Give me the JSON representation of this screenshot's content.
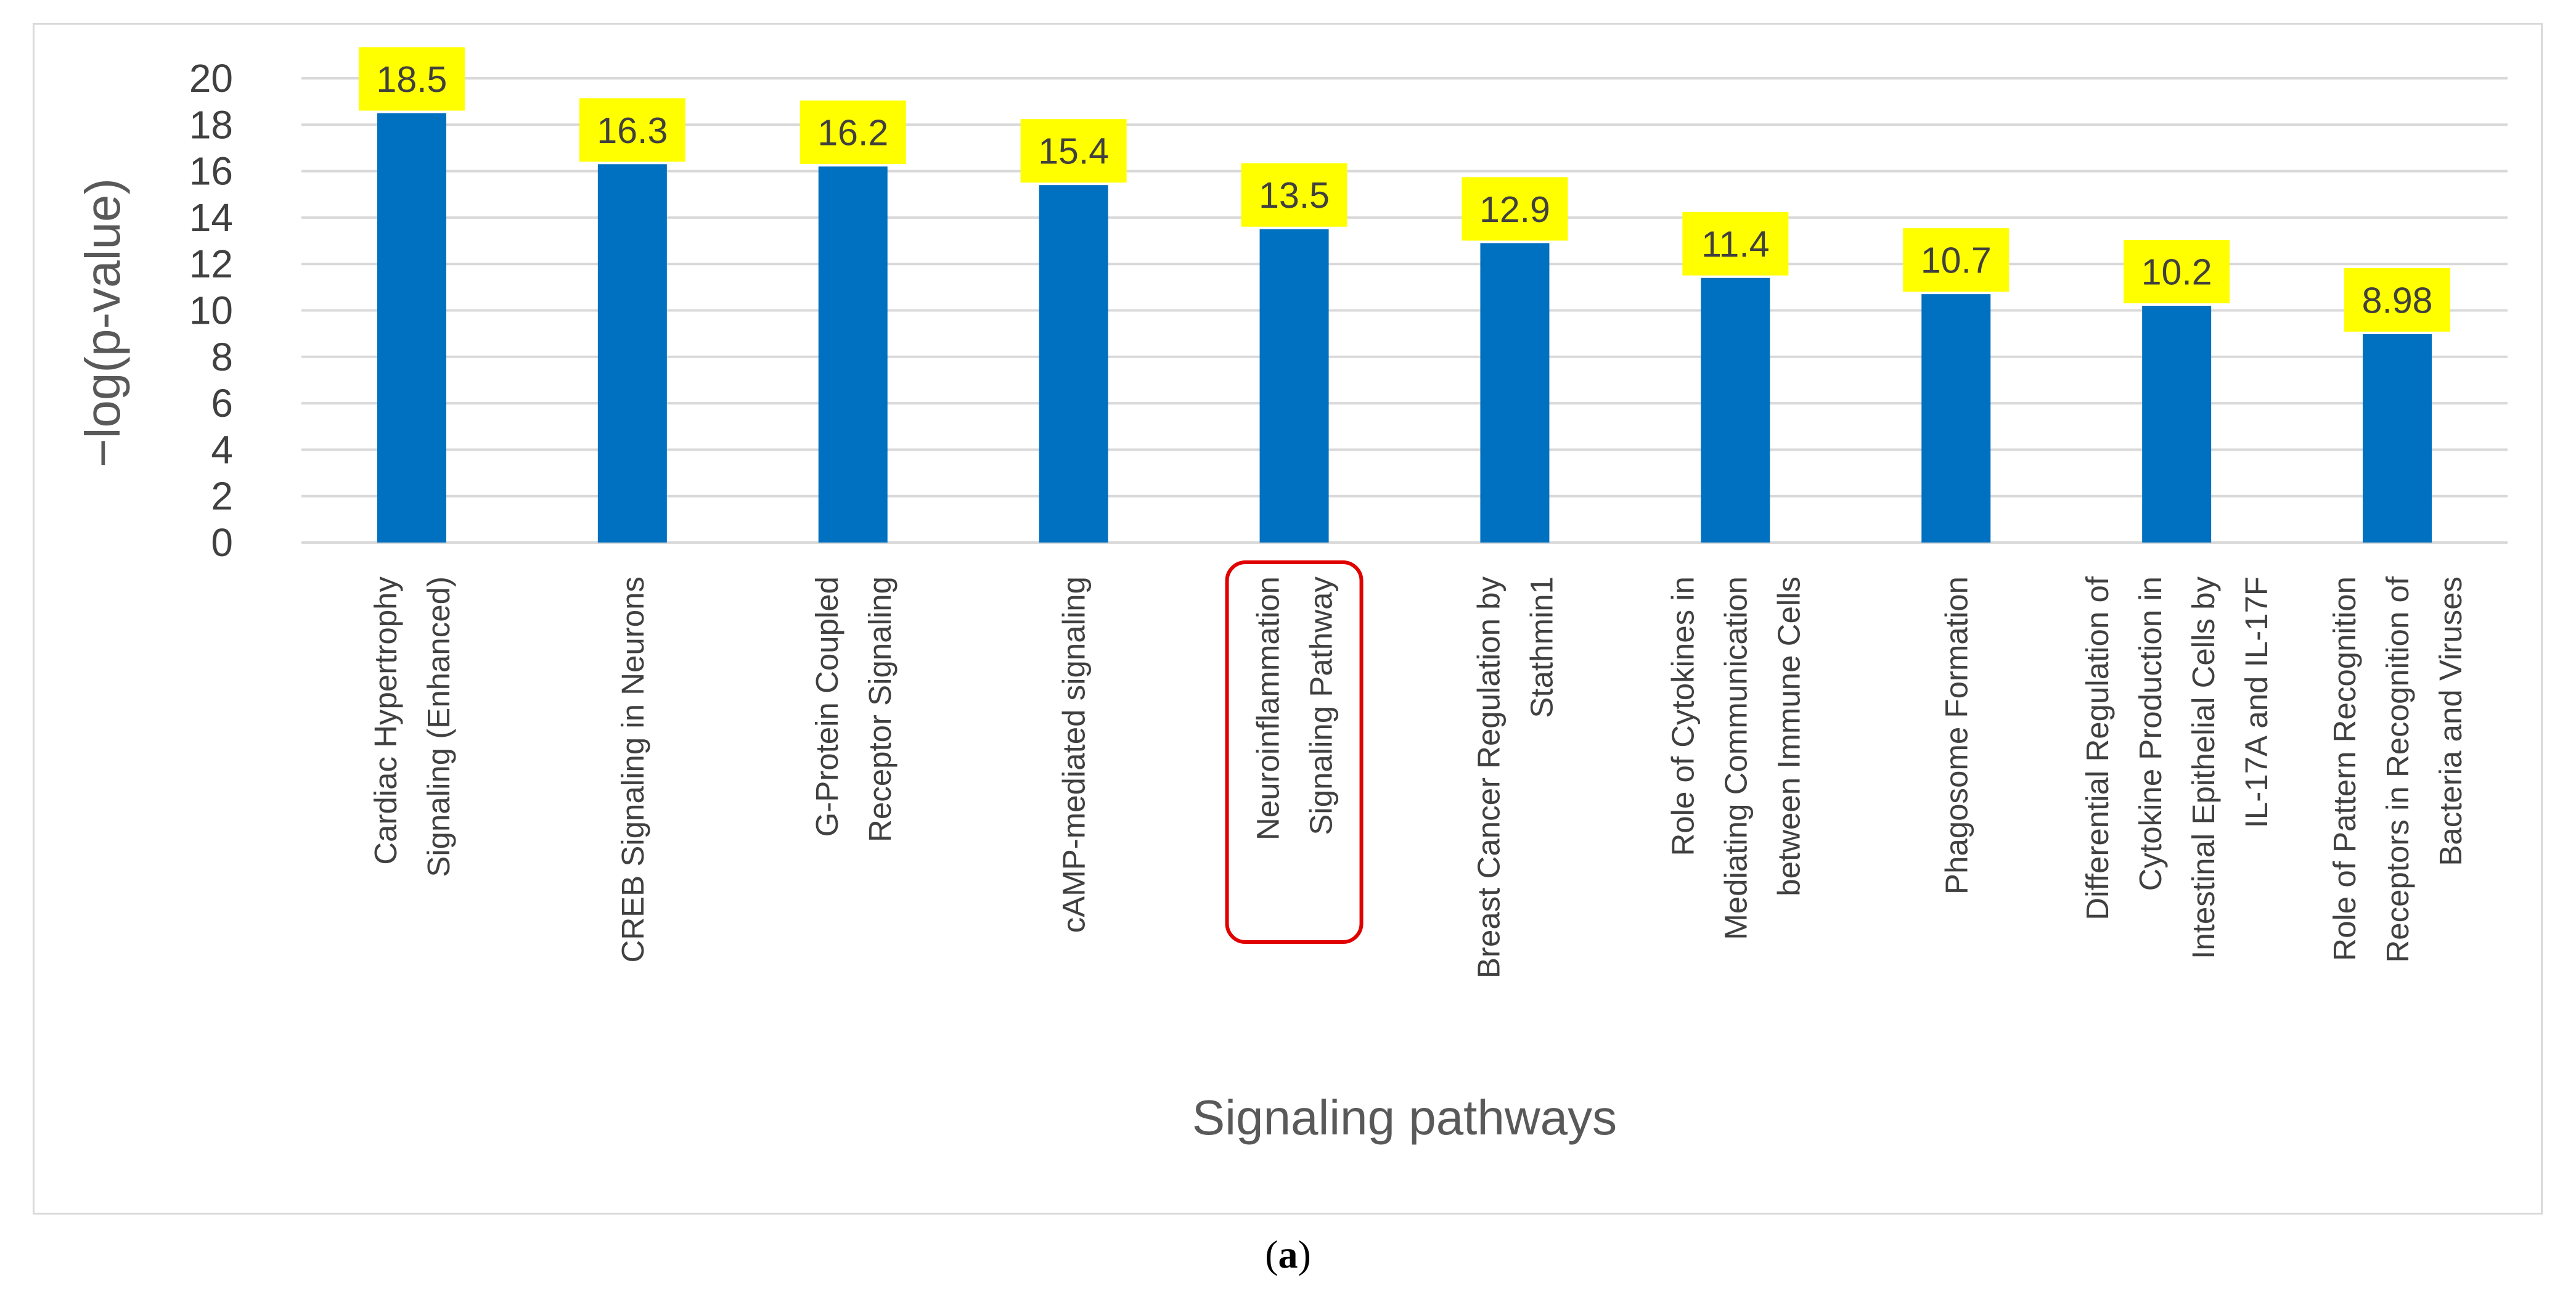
{
  "chart_data": {
    "type": "bar",
    "categories": [
      [
        "Cardiac Hypertrophy",
        "Signaling (Enhanced)"
      ],
      [
        "CREB Signaling in Neurons"
      ],
      [
        "G-Protein Coupled",
        "Receptor Signaling"
      ],
      [
        "cAMP-mediated signaling"
      ],
      [
        "Neuroinflammation",
        "Signaling Pathway"
      ],
      [
        "Breast Cancer Regulation by",
        "Stathmin1"
      ],
      [
        "Role of Cytokines in",
        "Mediating Communication",
        "between Immune Cells"
      ],
      [
        "Phagosome Formation"
      ],
      [
        "Differential Regulation of",
        "Cytokine Production in",
        "Intestinal Epithelial Cells by",
        "IL-17A and IL-17F"
      ],
      [
        "Role of Pattern Recognition",
        "Receptors in Recognition of",
        "Bacteria and Viruses"
      ]
    ],
    "values": [
      18.5,
      16.3,
      16.2,
      15.4,
      13.5,
      12.9,
      11.4,
      10.7,
      10.2,
      8.98
    ],
    "data_labels": [
      "18.5",
      "16.3",
      "16.2",
      "15.4",
      "13.5",
      "12.9",
      "11.4",
      "10.7",
      "10.2",
      "8.98"
    ],
    "highlighted_index": 4,
    "xlabel": "Signaling pathways",
    "ylabel": "−log(p-value)",
    "ylim": [
      0,
      20
    ],
    "yticks": [
      0,
      2,
      4,
      6,
      8,
      10,
      12,
      14,
      16,
      18,
      20
    ],
    "grid": true,
    "colors": {
      "bar": "#0070c0",
      "data_label_bg": "#ffff00",
      "highlight_box": "#e00000",
      "grid": "#d9d9d9"
    }
  },
  "caption": {
    "open": "(",
    "letter": "a",
    "close": ")"
  }
}
